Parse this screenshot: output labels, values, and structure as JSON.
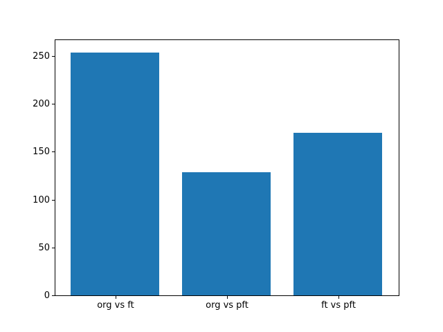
{
  "figure": {
    "background": "#ffffff"
  },
  "chart_data": {
    "type": "bar",
    "categories": [
      "org vs ft",
      "org vs pft",
      "ft vs pft"
    ],
    "values": [
      254,
      129,
      170
    ],
    "series": [
      {
        "name": "",
        "values": [
          254,
          129,
          170
        ]
      }
    ],
    "yticks": [
      0,
      50,
      100,
      150,
      200,
      250
    ],
    "ytick_labels": [
      "0",
      "50",
      "100",
      "150",
      "200",
      "250"
    ],
    "ylim": [
      0,
      266.7
    ],
    "xlim": [
      -0.54,
      2.54
    ],
    "bar_width_fraction": 0.8,
    "bar_color": "#1f77b4",
    "axis_color": "#000000",
    "text_color": "#000000",
    "grid": false,
    "legend": false
  }
}
